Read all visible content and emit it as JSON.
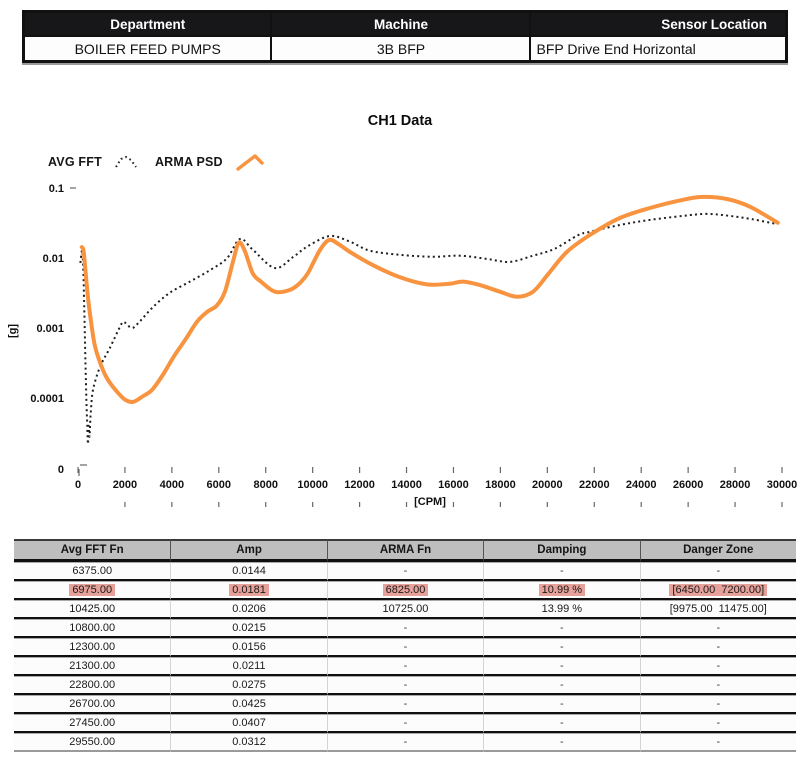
{
  "info_table": {
    "headers": [
      "Department",
      "Machine",
      "Sensor Location"
    ],
    "values": [
      "BOILER FEED PUMPS",
      "3B BFP",
      "BFP Drive End Horizontal"
    ]
  },
  "chart_data": {
    "type": "line",
    "title": "CH1 Data",
    "xlabel": "[CPM]",
    "ylabel": "[g]",
    "y_scale": "log",
    "xlim": [
      0,
      30000
    ],
    "ylim": [
      0.0001,
      0.1
    ],
    "grid": false,
    "legend_position": "top-left",
    "x_ticks": [
      0,
      2000,
      4000,
      6000,
      8000,
      10000,
      12000,
      14000,
      16000,
      18000,
      20000,
      22000,
      24000,
      26000,
      28000,
      30000
    ],
    "y_ticks": [
      "0.1",
      "0.01",
      "0.001",
      "0.0001",
      "0"
    ],
    "legend": [
      {
        "name": "AVG FFT",
        "style": "dotted",
        "color": "#1f1f1f"
      },
      {
        "name": "ARMA PSD",
        "style": "solid",
        "color": "#F8943F"
      }
    ],
    "series": [
      {
        "name": "AVG FFT",
        "points": [
          [
            100,
            0.0085
          ],
          [
            180,
            0.0128
          ],
          [
            230,
            0.006
          ],
          [
            280,
            0.0012
          ],
          [
            320,
            0.0003
          ],
          [
            360,
            9e-05
          ],
          [
            395,
            4e-05
          ],
          [
            425,
            2.2e-05
          ],
          [
            455,
            4e-05
          ],
          [
            490,
            2.8e-05
          ],
          [
            540,
            6e-05
          ],
          [
            640,
            0.00013
          ],
          [
            940,
            0.00028
          ],
          [
            1360,
            0.00052
          ],
          [
            1790,
            0.00104
          ],
          [
            1950,
            0.00122
          ],
          [
            2300,
            0.001
          ],
          [
            2640,
            0.00125
          ],
          [
            3200,
            0.002
          ],
          [
            3920,
            0.0032
          ],
          [
            4770,
            0.0046
          ],
          [
            5620,
            0.0067
          ],
          [
            6350,
            0.0099
          ],
          [
            6900,
            0.0187
          ],
          [
            7460,
            0.013
          ],
          [
            8390,
            0.0072
          ],
          [
            9160,
            0.0103
          ],
          [
            9800,
            0.0148
          ],
          [
            10740,
            0.0206
          ],
          [
            11590,
            0.0171
          ],
          [
            12440,
            0.0127
          ],
          [
            13720,
            0.0111
          ],
          [
            15130,
            0.0104
          ],
          [
            16280,
            0.0108
          ],
          [
            17430,
            0.0097
          ],
          [
            18410,
            0.0088
          ],
          [
            19390,
            0.0108
          ],
          [
            20300,
            0.0135
          ],
          [
            21300,
            0.0211
          ],
          [
            21810,
            0.0237
          ],
          [
            23090,
            0.0296
          ],
          [
            24370,
            0.035
          ],
          [
            25780,
            0.0399
          ],
          [
            26800,
            0.0426
          ],
          [
            27780,
            0.0399
          ],
          [
            28760,
            0.0357
          ],
          [
            29780,
            0.0305
          ]
        ]
      },
      {
        "name": "ARMA PSD",
        "points": [
          [
            160,
            0.0143
          ],
          [
            240,
            0.0125
          ],
          [
            330,
            0.006
          ],
          [
            420,
            0.0028
          ],
          [
            520,
            0.0015
          ],
          [
            700,
            0.0006
          ],
          [
            900,
            0.00035
          ],
          [
            1200,
            0.0002
          ],
          [
            1600,
            0.00013
          ],
          [
            2000,
            9.5e-05
          ],
          [
            2350,
            8.8e-05
          ],
          [
            2750,
            0.000105
          ],
          [
            3150,
            0.00013
          ],
          [
            3600,
            0.00021
          ],
          [
            4100,
            0.0004
          ],
          [
            4600,
            0.0007
          ],
          [
            5070,
            0.00123
          ],
          [
            5500,
            0.0017
          ],
          [
            5920,
            0.0021
          ],
          [
            6260,
            0.0033
          ],
          [
            6600,
            0.0088
          ],
          [
            6850,
            0.0165
          ],
          [
            7100,
            0.0128
          ],
          [
            7450,
            0.006
          ],
          [
            7800,
            0.0046
          ],
          [
            8390,
            0.0033
          ],
          [
            9030,
            0.0035
          ],
          [
            9460,
            0.0044
          ],
          [
            9800,
            0.0061
          ],
          [
            10300,
            0.0128
          ],
          [
            10700,
            0.0181
          ],
          [
            11100,
            0.0158
          ],
          [
            11590,
            0.0122
          ],
          [
            12570,
            0.0079
          ],
          [
            13720,
            0.0053
          ],
          [
            14870,
            0.0042
          ],
          [
            15850,
            0.0043
          ],
          [
            16400,
            0.0046
          ],
          [
            17130,
            0.0041
          ],
          [
            17980,
            0.0033
          ],
          [
            18700,
            0.0028
          ],
          [
            19390,
            0.0033
          ],
          [
            20020,
            0.0058
          ],
          [
            20830,
            0.0122
          ],
          [
            21810,
            0.0213
          ],
          [
            23090,
            0.0373
          ],
          [
            24370,
            0.0518
          ],
          [
            25780,
            0.0679
          ],
          [
            26630,
            0.0745
          ],
          [
            27650,
            0.0696
          ],
          [
            28630,
            0.0541
          ],
          [
            29820,
            0.0318
          ]
        ]
      }
    ]
  },
  "results_table": {
    "headers": [
      "Avg FFT Fn",
      "Amp",
      "ARMA Fn",
      "Damping",
      "Danger Zone"
    ],
    "rows": [
      {
        "highlight": false,
        "cells": [
          "6375.00",
          "0.0144",
          "-",
          "-",
          "-"
        ]
      },
      {
        "highlight": true,
        "cells": [
          "6975.00",
          "0.0181",
          "6825.00",
          "10.99 %",
          "[6450.00  7200.00]"
        ]
      },
      {
        "highlight": false,
        "cells": [
          "10425.00",
          "0.0206",
          "10725.00",
          "13.99 %",
          "[9975.00  11475.00]"
        ]
      },
      {
        "highlight": false,
        "cells": [
          "10800.00",
          "0.0215",
          "-",
          "-",
          "-"
        ]
      },
      {
        "highlight": false,
        "cells": [
          "12300.00",
          "0.0156",
          "-",
          "-",
          "-"
        ]
      },
      {
        "highlight": false,
        "cells": [
          "21300.00",
          "0.0211",
          "-",
          "-",
          "-"
        ]
      },
      {
        "highlight": false,
        "cells": [
          "22800.00",
          "0.0275",
          "-",
          "-",
          "-"
        ]
      },
      {
        "highlight": false,
        "cells": [
          "26700.00",
          "0.0425",
          "-",
          "-",
          "-"
        ]
      },
      {
        "highlight": false,
        "cells": [
          "27450.00",
          "0.0407",
          "-",
          "-",
          "-"
        ]
      },
      {
        "highlight": false,
        "cells": [
          "29550.00",
          "0.0312",
          "-",
          "-",
          "-"
        ]
      }
    ]
  },
  "colors": {
    "arma_orange": "#F8943F",
    "avg_fft_black": "#1f1f1f",
    "highlight_salmon": "#E6A19A",
    "info_header_bg": "#17171a",
    "results_header_bg": "#bebebe",
    "tick_gray": "#666666"
  }
}
